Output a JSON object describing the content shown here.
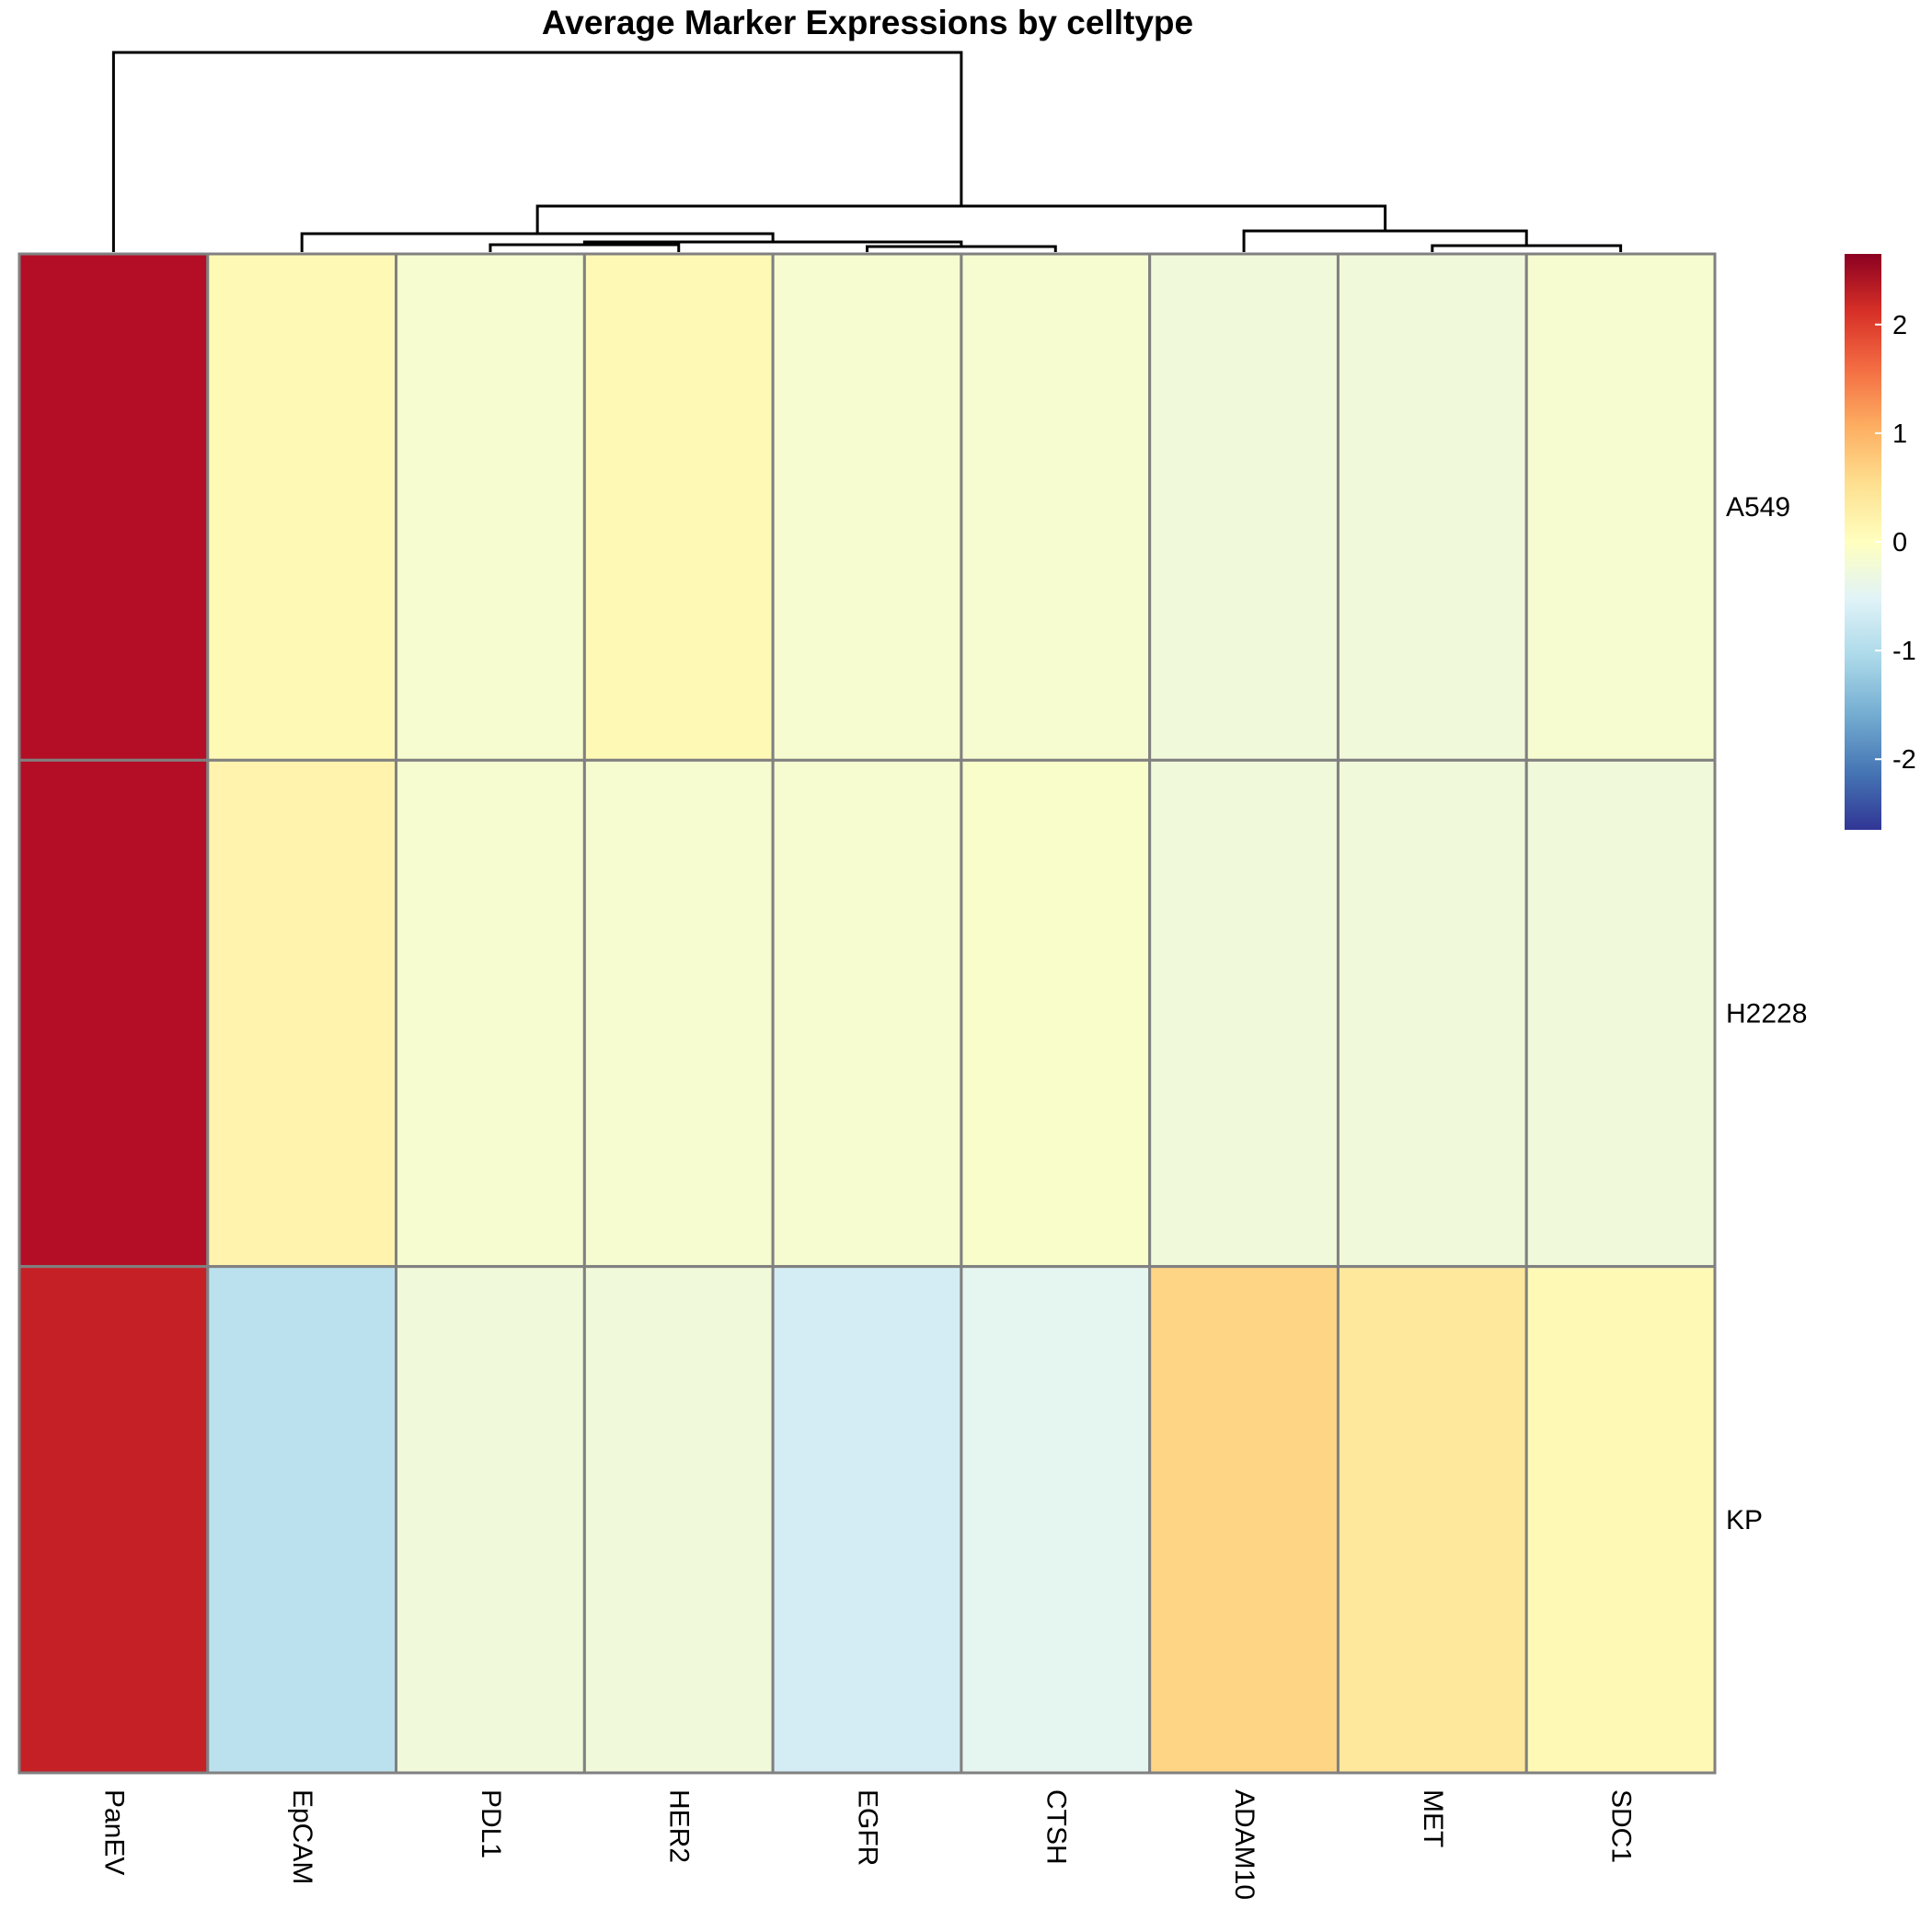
{
  "chart_data": {
    "type": "heatmap",
    "title": "Average Marker Expressions by celltype",
    "columns": [
      "PanEV",
      "EpCAM",
      "PDL1",
      "HER2",
      "EGFR",
      "CTSH",
      "ADAM10",
      "MET",
      "SDC1"
    ],
    "rows": [
      "A549",
      "H2228",
      "KP"
    ],
    "values": [
      [
        2.5,
        0.1,
        -0.15,
        0.1,
        -0.15,
        -0.15,
        -0.25,
        -0.25,
        -0.15
      ],
      [
        2.5,
        0.2,
        -0.15,
        -0.15,
        -0.15,
        -0.1,
        -0.25,
        -0.25,
        -0.25
      ],
      [
        2.3,
        -0.9,
        -0.25,
        -0.25,
        -0.65,
        -0.45,
        0.65,
        0.4,
        0.1
      ]
    ],
    "color_scale": {
      "min": -2.65,
      "max": 2.65,
      "ticks": [
        2,
        1,
        0,
        -1,
        -2
      ],
      "colors": [
        "#313695",
        "#4575B4",
        "#74ADD1",
        "#ABD9E9",
        "#E0F3F8",
        "#FFFFBF",
        "#FEE090",
        "#FDAE61",
        "#F46D43",
        "#D73027",
        "#A50026"
      ],
      "dark_end": "#8B0021"
    },
    "column_dendrogram": true,
    "grid_color": "#808080"
  }
}
